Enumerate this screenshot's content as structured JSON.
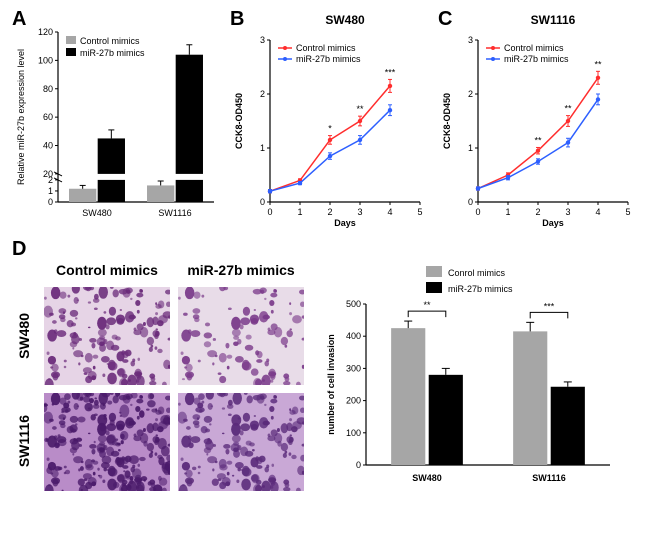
{
  "panelA": {
    "label": "A",
    "type": "bar",
    "ylabel": "Relative  miR-27b expression level",
    "categories": [
      "SW480",
      "SW1116"
    ],
    "series": [
      {
        "name": "Control mimics",
        "color": "#a6a6a6",
        "values": [
          1.2,
          1.5
        ],
        "err": [
          0.3,
          0.4
        ]
      },
      {
        "name": "miR-27b mimics",
        "color": "#000000",
        "values": [
          45,
          104
        ],
        "err": [
          6,
          7
        ]
      }
    ],
    "ybreak": {
      "low_max": 2,
      "high_min": 20,
      "high_max": 120,
      "high_step": 20
    },
    "bar_width": 0.35
  },
  "panelB": {
    "label": "B",
    "type": "line",
    "title": "SW480",
    "xlabel": "Days",
    "ylabel": "CCK8-OD450",
    "xlim": [
      0,
      5
    ],
    "xtick_step": 1,
    "ylim": [
      0,
      3
    ],
    "ytick_step": 1,
    "series": [
      {
        "name": "Control mimics",
        "color": "#ff2d2d",
        "x": [
          0,
          1,
          2,
          3,
          4
        ],
        "y": [
          0.2,
          0.4,
          1.15,
          1.5,
          2.15
        ],
        "err": [
          0.03,
          0.03,
          0.08,
          0.09,
          0.12
        ]
      },
      {
        "name": "miR-27b mimics",
        "color": "#2d5fff",
        "x": [
          0,
          1,
          2,
          3,
          4
        ],
        "y": [
          0.2,
          0.35,
          0.85,
          1.15,
          1.7
        ],
        "err": [
          0.03,
          0.03,
          0.06,
          0.08,
          0.1
        ]
      }
    ],
    "sig": {
      "2": "*",
      "3": "**",
      "4": "***"
    }
  },
  "panelC": {
    "label": "C",
    "type": "line",
    "title": "SW1116",
    "xlabel": "Days",
    "ylabel": "CCK8-OD450",
    "xlim": [
      0,
      5
    ],
    "xtick_step": 1,
    "ylim": [
      0,
      3
    ],
    "ytick_step": 1,
    "series": [
      {
        "name": "Control mimics",
        "color": "#ff2d2d",
        "x": [
          0,
          1,
          2,
          3,
          4
        ],
        "y": [
          0.25,
          0.5,
          0.95,
          1.5,
          2.3
        ],
        "err": [
          0.03,
          0.04,
          0.06,
          0.1,
          0.12
        ]
      },
      {
        "name": "miR-27b mimics",
        "color": "#2d5fff",
        "x": [
          0,
          1,
          2,
          3,
          4
        ],
        "y": [
          0.25,
          0.45,
          0.75,
          1.1,
          1.9
        ],
        "err": [
          0.03,
          0.04,
          0.05,
          0.08,
          0.1
        ]
      }
    ],
    "sig": {
      "2": "**",
      "3": "**",
      "4": "**"
    }
  },
  "panelD": {
    "label": "D",
    "col_headers": [
      "Control mimics",
      "miR-27b mimics"
    ],
    "row_headers": [
      "SW480",
      "SW1116"
    ],
    "images": {
      "SW480_Control": {
        "bg": "#e6d4e6",
        "blob": "#6a2a7a",
        "density": 0.5
      },
      "SW480_miR27b": {
        "bg": "#e8dce8",
        "blob": "#7a3a8a",
        "density": 0.32
      },
      "SW1116_Control": {
        "bg": "#b98cc8",
        "blob": "#4a1a6a",
        "density": 0.85
      },
      "SW1116_miR27b": {
        "bg": "#c9a8d6",
        "blob": "#5a2a7a",
        "density": 0.55
      }
    },
    "chart": {
      "type": "bar",
      "ylabel": "number of cell invasion",
      "categories": [
        "SW480",
        "SW1116"
      ],
      "series": [
        {
          "name": "Conrol mimics",
          "color": "#a6a6a6",
          "values": [
            425,
            415
          ],
          "err": [
            22,
            28
          ]
        },
        {
          "name": "miR-27b mimics",
          "color": "#000000",
          "values": [
            280,
            243
          ],
          "err": [
            20,
            15
          ]
        }
      ],
      "ylim": [
        0,
        500
      ],
      "ytick_step": 100,
      "sig": {
        "SW480": "**",
        "SW1116": "***"
      }
    }
  }
}
